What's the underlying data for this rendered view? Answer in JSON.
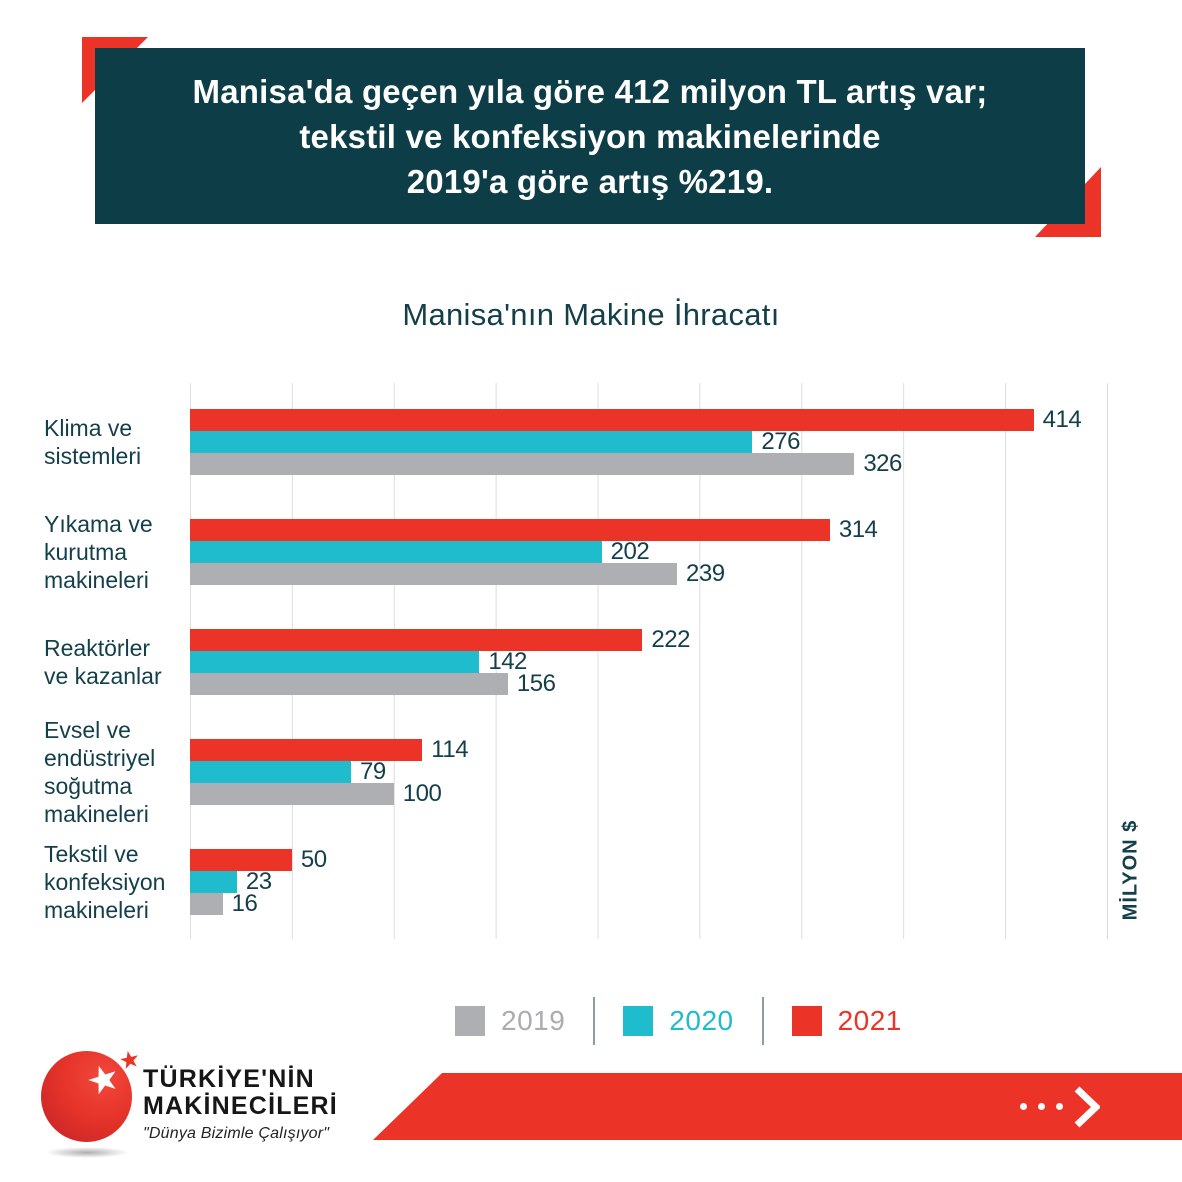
{
  "colors": {
    "red": "#EC3327",
    "cyan": "#1FBCCE",
    "gray": "#AEAFB2",
    "teal_dark": "#0D3D47",
    "text_teal": "#133F4A",
    "gridline": "#DDDDDD"
  },
  "header": {
    "lines": [
      "Manisa'da geçen yıla göre 412 milyon TL artış var;",
      "tekstil ve konfeksiyon makinelerinde",
      "2019'a göre artış %219."
    ]
  },
  "chart": {
    "title": "Manisa'nın Makine İhracatı",
    "unit_label": "MİLYON $"
  },
  "chart_data": {
    "type": "bar",
    "orientation": "horizontal",
    "title": "Manisa'nın Makine İhracatı",
    "xlabel": "",
    "ylabel": "MİLYON $",
    "xlim": [
      0,
      450
    ],
    "grid_step": 50,
    "grid": true,
    "legend_position": "bottom",
    "categories": [
      "Klima ve\nsistemleri",
      "Yıkama ve\nkurutma\nmakineleri",
      "Reaktörler\nve kazanlar",
      "Evsel ve\nendüstriyel\nsoğutma\nmakineleri",
      "Tekstil ve\nkonfeksiyon\nmakineleri"
    ],
    "series": [
      {
        "name": "2021",
        "color": "#EC3327",
        "values": [
          414,
          314,
          222,
          114,
          50
        ]
      },
      {
        "name": "2020",
        "color": "#1FBCCE",
        "values": [
          276,
          202,
          142,
          79,
          23
        ]
      },
      {
        "name": "2019",
        "color": "#AEAFB2",
        "values": [
          326,
          239,
          156,
          100,
          16
        ]
      }
    ]
  },
  "legend": {
    "items": [
      {
        "label": "2019",
        "color": "#AEAFB2",
        "text_color": "#ABACAE"
      },
      {
        "label": "2020",
        "color": "#1FBCCE",
        "text_color": "#1FBCCE"
      },
      {
        "label": "2021",
        "color": "#EC3327",
        "text_color": "#EC3327"
      }
    ]
  },
  "footer": {
    "brand_line1": "TÜRKİYE'NİN",
    "brand_line2": "MAKİNECİLERİ",
    "tagline": "\"Dünya Bizimle Çalışıyor\"",
    "cta_icon": "dots-chevron-right-icon",
    "logo_icon": "red-globe-star-icon"
  }
}
